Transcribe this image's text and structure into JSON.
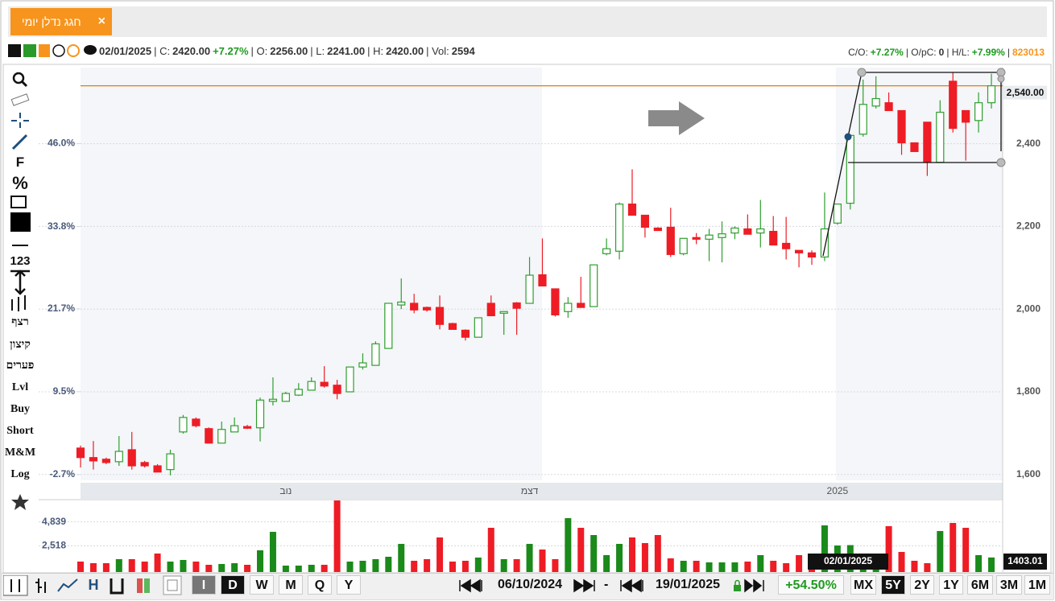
{
  "tab": {
    "title": "חגג נדלן יומי",
    "close": "×"
  },
  "quote": {
    "date": "02/01/2025",
    "c_label": "| C:",
    "c": "2420.00",
    "c_change": "+7.27%",
    "o_label": "| O:",
    "o": "2256.00",
    "l_label": "| L:",
    "l": "2241.00",
    "h_label": "| H:",
    "h": "2420.00",
    "vol_label": "| Vol:",
    "vol": "2594"
  },
  "stats": {
    "co_label": "C/O:",
    "co": "+7.27%",
    "opc_label": "| O/pC:",
    "opc": "0",
    "hl_label": "| H/L:",
    "hl": "+7.99%",
    "sep": "|",
    "id": "823013"
  },
  "left_tools": [
    "F",
    "%",
    "123",
    "רצף",
    "קיצון",
    "פערים",
    "Lvl",
    "Buy",
    "Short",
    "M&M",
    "Log"
  ],
  "bottom_bar": {
    "chart_type": "H",
    "periods": [
      "I",
      "D",
      "W",
      "M",
      "Q",
      "Y"
    ],
    "from": "06/10/2024",
    "dash": "-",
    "to": "19/01/2025",
    "change": "+54.50%",
    "ranges": [
      "MX",
      "5Y",
      "2Y",
      "1Y",
      "6M",
      "3M",
      "1M"
    ]
  },
  "chart_data": {
    "type": "candlestick",
    "categories": [
      null,
      null,
      null,
      null,
      null,
      null,
      null,
      null,
      null,
      null,
      null,
      null,
      null,
      null,
      null,
      null,
      "נוב",
      null,
      null,
      null,
      null,
      null,
      null,
      null,
      null,
      null,
      null,
      null,
      null,
      null,
      null,
      null,
      null,
      null,
      null,
      "דצמ",
      null,
      null,
      null,
      null,
      null,
      null,
      null,
      null,
      null,
      null,
      null,
      null,
      null,
      null,
      null,
      null,
      null,
      null,
      null,
      null,
      null,
      null,
      null,
      "2025",
      null,
      null,
      null,
      null,
      null,
      null,
      null,
      null,
      null,
      null,
      null,
      null
    ],
    "open": [
      1664,
      1641,
      1637,
      1631,
      1660,
      1629,
      1621,
      1612,
      1703,
      1734,
      1711,
      1676,
      1703,
      1716,
      1713,
      1777,
      1777,
      1792,
      1804,
      1823,
      1816,
      1800,
      1860,
      1864,
      1905,
      2010,
      2014,
      2004,
      2004,
      1965,
      1949,
      1932,
      2014,
      1990,
      2015,
      2014,
      2083,
      2049,
      1994,
      2014,
      2006,
      2134,
      2140,
      2254,
      2227,
      2196,
      2198,
      2134,
      2173,
      2169,
      2173,
      2184,
      2194,
      2184,
      2188,
      2159,
      2142,
      2136,
      2126,
      2208,
      2256,
      2423,
      2491,
      2499,
      2480,
      2402,
      2452,
      2355,
      2551,
      2480,
      2456,
      2499
    ],
    "high": [
      1670,
      1681,
      1641,
      1693,
      1703,
      1633,
      1625,
      1660,
      1744,
      1738,
      1714,
      1728,
      1738,
      1720,
      1786,
      1835,
      1800,
      1821,
      1835,
      1862,
      1829,
      1860,
      1893,
      1922,
      2014,
      2074,
      2037,
      2006,
      2033,
      1967,
      1951,
      1979,
      2033,
      1994,
      2017,
      2126,
      2171,
      2049,
      2029,
      2078,
      2107,
      2171,
      2258,
      2338,
      2227,
      2198,
      2245,
      2171,
      2184,
      2194,
      2212,
      2200,
      2229,
      2264,
      2225,
      2223,
      2142,
      2142,
      2282,
      2254,
      2420,
      2555,
      2563,
      2524,
      2480,
      2402,
      2452,
      2505,
      2573,
      2480,
      2524,
      2569
    ],
    "low": [
      1617,
      1612,
      1625,
      1621,
      1612,
      1617,
      1606,
      1598,
      1699,
      1714,
      1676,
      1676,
      1703,
      1710,
      1680,
      1767,
      1777,
      1790,
      1804,
      1810,
      1782,
      1800,
      1854,
      1864,
      1905,
      2000,
      1990,
      1994,
      1951,
      1951,
      1924,
      1932,
      1984,
      1938,
      1938,
      2014,
      2056,
      1982,
      1979,
      2004,
      2006,
      2130,
      2120,
      2227,
      2173,
      2190,
      2126,
      2130,
      2157,
      2116,
      2113,
      2169,
      2181,
      2149,
      2155,
      2120,
      2101,
      2107,
      2116,
      2204,
      2241,
      2417,
      2485,
      2480,
      2373,
      2381,
      2322,
      2355,
      2427,
      2359,
      2427,
      2485
    ],
    "close": [
      1641,
      1633,
      1629,
      1656,
      1621,
      1621,
      1606,
      1650,
      1738,
      1718,
      1676,
      1709,
      1718,
      1712,
      1780,
      1782,
      1796,
      1806,
      1825,
      1814,
      1796,
      1860,
      1870,
      1916,
      2014,
      2017,
      1998,
      1998,
      1963,
      1951,
      1932,
      1979,
      1984,
      1994,
      2002,
      2082,
      2056,
      1986,
      2014,
      2004,
      2107,
      2146,
      2254,
      2227,
      2198,
      2190,
      2132,
      2171,
      2169,
      2179,
      2182,
      2196,
      2181,
      2194,
      2155,
      2146,
      2136,
      2126,
      2194,
      2254,
      2420,
      2495,
      2509,
      2480,
      2402,
      2381,
      2355,
      2476,
      2437,
      2452,
      2499,
      2540
    ],
    "volume": [
      1008,
      853,
      853,
      1240,
      1240,
      1008,
      1783,
      1008,
      1163,
      1008,
      698,
      775,
      853,
      698,
      2093,
      3875,
      620,
      620,
      698,
      698,
      6898,
      1008,
      1085,
      1240,
      1473,
      2713,
      1085,
      1240,
      3333,
      1008,
      1085,
      1395,
      4263,
      1240,
      1240,
      2713,
      2170,
      1240,
      5193,
      4263,
      3565,
      1628,
      2713,
      3333,
      2790,
      3565,
      1318,
      1085,
      1085,
      930,
      930,
      930,
      1008,
      1628,
      1085,
      853,
      1628,
      1783,
      4495,
      2558,
      2594,
      1783,
      1783,
      4418,
      1938,
      1085,
      853,
      3953,
      4728,
      4263,
      1628,
      1403.01
    ],
    "ylim": [
      1586,
      2584
    ],
    "yticks": [
      {
        "value": 1600,
        "label": "1,600"
      },
      {
        "value": 1800,
        "label": "1,800"
      },
      {
        "value": 2000,
        "label": "2,000"
      },
      {
        "value": 2200,
        "label": "2,200"
      },
      {
        "value": 2400,
        "label": "2,400"
      }
    ],
    "y2lim": [
      -3.55,
      57.2
    ],
    "y2ticks": [
      {
        "value": -2.7,
        "label": "-2.7%"
      },
      {
        "value": 9.5,
        "label": "9.5%"
      },
      {
        "value": 21.7,
        "label": "21.7%"
      },
      {
        "value": 33.8,
        "label": "33.8%"
      },
      {
        "value": 46.0,
        "label": "46.0%"
      }
    ],
    "vlim": [
      0,
      6900
    ],
    "vticks": [
      {
        "value": 2518,
        "label": "2,518"
      },
      {
        "value": 4839,
        "label": "4,839"
      }
    ],
    "price_marker": {
      "value": 2540,
      "label": "2,540.00",
      "color": "#e07b16"
    },
    "cursor_label": "02/01/2025",
    "up_color": "#2f9e2f",
    "down_color": "#ee1c25",
    "volume_up_color": "#1a8a1a",
    "grid": true
  }
}
